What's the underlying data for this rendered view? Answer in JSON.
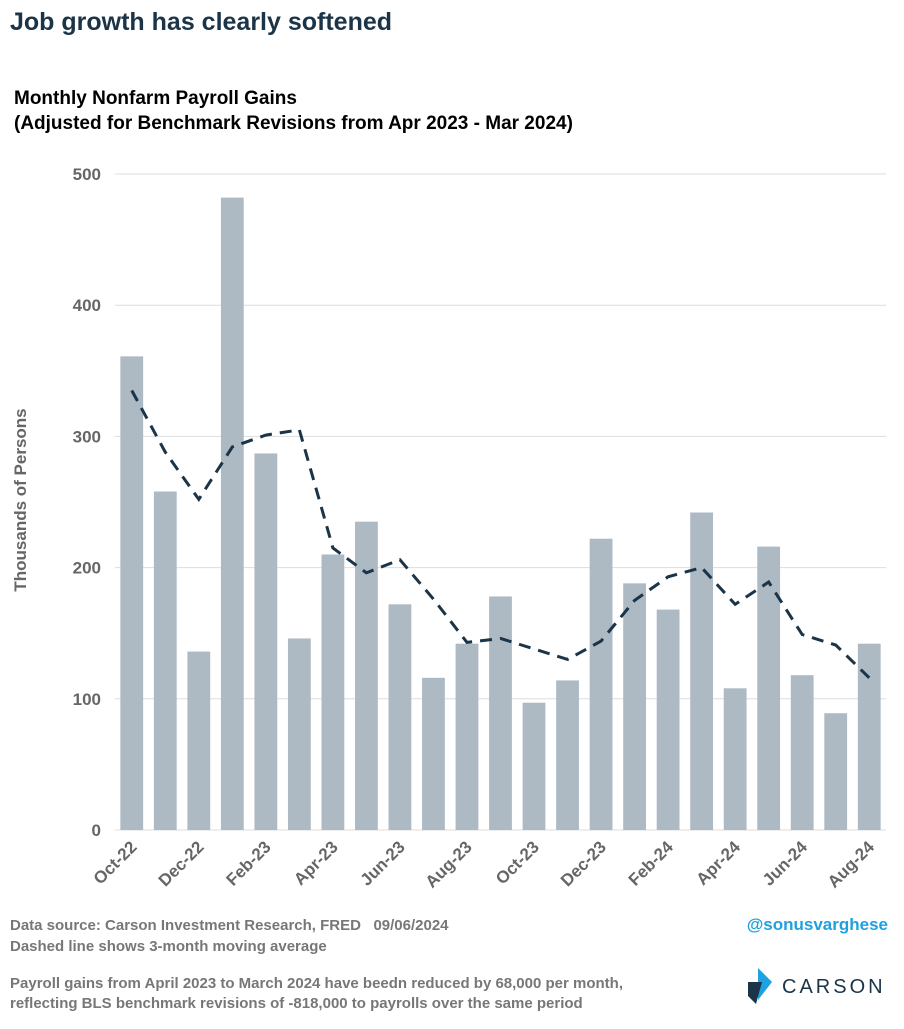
{
  "chart_data": {
    "type": "bar",
    "headline": "Job growth has clearly softened",
    "title": "Monthly Nonfarm Payroll Gains",
    "subtitle": "(Adjusted for Benchmark Revisions from Apr 2023 - Mar 2024)",
    "ylabel": "Thousands of Persons",
    "categories": [
      "Oct-22",
      null,
      "Dec-22",
      null,
      "Feb-23",
      null,
      "Apr-23",
      null,
      "Jun-23",
      null,
      "Aug-23",
      null,
      "Oct-23",
      null,
      "Dec-23",
      null,
      "Feb-24",
      null,
      "Apr-24",
      null,
      "Jun-24",
      null,
      "Aug-24"
    ],
    "series": [
      {
        "name": "Payroll gains",
        "type": "bar",
        "color": "#adb9c3",
        "values": [
          361,
          258,
          136,
          482,
          287,
          146,
          210,
          235,
          172,
          116,
          142,
          178,
          97,
          114,
          222,
          188,
          168,
          242,
          108,
          216,
          118,
          89,
          142
        ]
      },
      {
        "name": "3-month moving average",
        "type": "line",
        "color": "#1b3447",
        "dashed": true,
        "values": [
          335,
          288,
          252,
          292,
          301,
          305,
          215,
          196,
          206,
          176,
          143,
          146,
          138,
          130,
          144,
          175,
          193,
          200,
          172,
          189,
          149,
          141,
          116
        ]
      }
    ],
    "ylim": [
      0,
      500
    ],
    "yticks": [
      0,
      100,
      200,
      300,
      400,
      500
    ],
    "grid": true,
    "source": "Data source: Carson Investment Research, FRED   09/06/2024",
    "note": "Dashed line shows 3-month moving average",
    "handle": "@sonusvarghese",
    "footnote": [
      "Payroll gains from April 2023 to March 2024 have beedn reduced by 68,000 per month,",
      "reflecting BLS benchmark revisions of -818,000 to payrolls over the same period"
    ],
    "logo": "CARSON"
  }
}
